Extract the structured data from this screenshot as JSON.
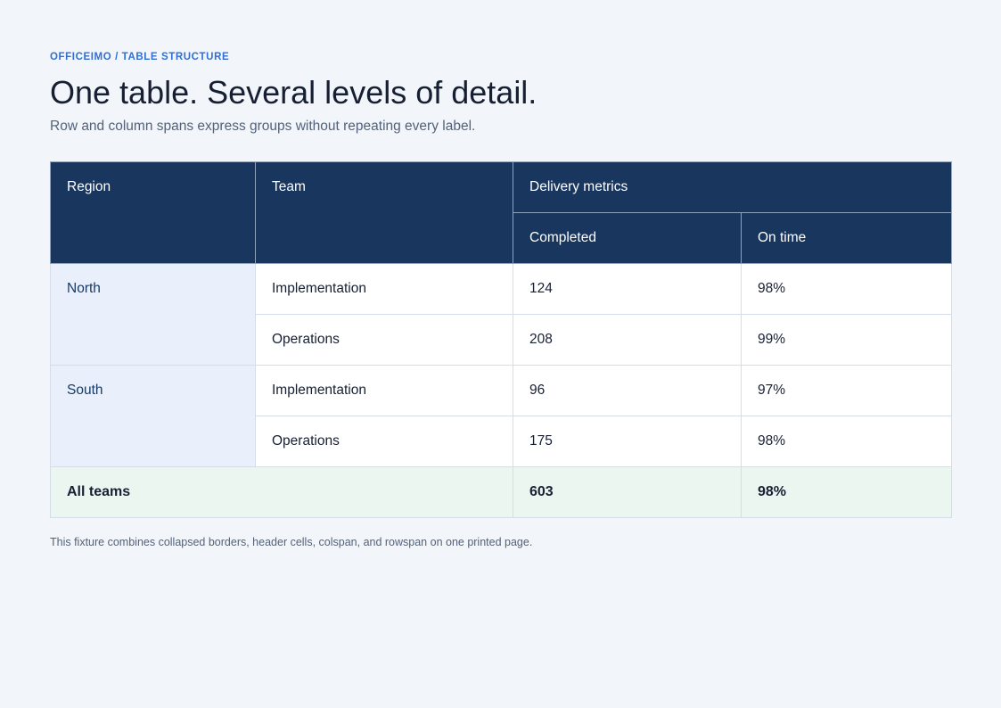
{
  "header": {
    "eyebrow": "OFFICEIMO / TABLE STRUCTURE",
    "title": "One table. Several levels of detail.",
    "subtitle": "Row and column spans express groups without repeating every label."
  },
  "table": {
    "headers": {
      "region": "Region",
      "team": "Team",
      "group": "Delivery metrics",
      "completed": "Completed",
      "on_time": "On time"
    },
    "regions": [
      {
        "name": "North",
        "rows": [
          {
            "team": "Implementation",
            "completed": "124",
            "on_time": "98%"
          },
          {
            "team": "Operations",
            "completed": "208",
            "on_time": "99%"
          }
        ]
      },
      {
        "name": "South",
        "rows": [
          {
            "team": "Implementation",
            "completed": "96",
            "on_time": "97%"
          },
          {
            "team": "Operations",
            "completed": "175",
            "on_time": "98%"
          }
        ]
      }
    ],
    "total": {
      "label": "All teams",
      "completed": "603",
      "on_time": "98%"
    }
  },
  "footnote": "This fixture combines collapsed borders, header cells, colspan, and rowspan on one printed page.",
  "colors": {
    "background": "#f2f6fb",
    "header_fill": "#18365e",
    "region_fill": "#e9f0fb",
    "total_fill": "#ecf6f1",
    "accent": "#2f6fd6"
  }
}
